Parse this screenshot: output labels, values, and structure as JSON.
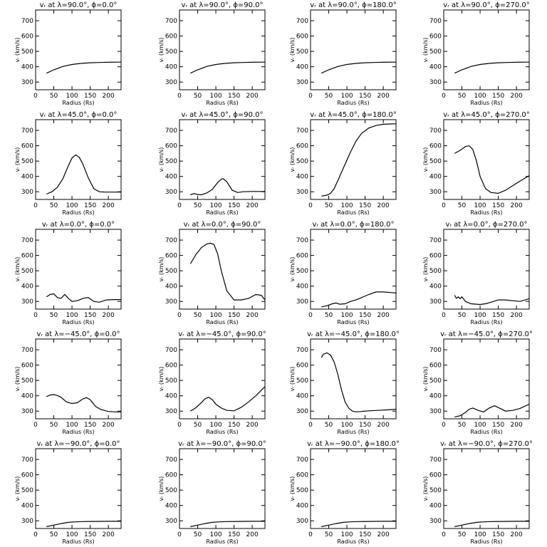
{
  "figure": {
    "xlabel": "Radius (Rs)",
    "ylabel": "vᵣ (km/s)"
  },
  "chart_data": [
    {
      "type": "line",
      "title": "vᵣ at λ=90.0°, ϕ=0.0°",
      "xlim": [
        0,
        235
      ],
      "ylim": [
        250,
        770
      ],
      "xticks": [
        0,
        50,
        100,
        150,
        200
      ],
      "yticks": [
        300,
        400,
        500,
        600,
        700
      ],
      "x": [
        30,
        50,
        75,
        100,
        125,
        150,
        175,
        200,
        235
      ],
      "y": [
        358,
        380,
        402,
        415,
        422,
        426,
        428,
        429,
        430
      ]
    },
    {
      "type": "line",
      "title": "vᵣ at λ=90.0°, ϕ=90.0°",
      "xlim": [
        0,
        235
      ],
      "ylim": [
        250,
        770
      ],
      "xticks": [
        0,
        50,
        100,
        150,
        200
      ],
      "yticks": [
        300,
        400,
        500,
        600,
        700
      ],
      "x": [
        30,
        50,
        75,
        100,
        125,
        150,
        175,
        200,
        235
      ],
      "y": [
        358,
        380,
        402,
        415,
        422,
        426,
        428,
        429,
        430
      ]
    },
    {
      "type": "line",
      "title": "vᵣ at λ=90.0°, ϕ=180.0°",
      "xlim": [
        0,
        235
      ],
      "ylim": [
        250,
        770
      ],
      "xticks": [
        0,
        50,
        100,
        150,
        200
      ],
      "yticks": [
        300,
        400,
        500,
        600,
        700
      ],
      "x": [
        30,
        50,
        75,
        100,
        125,
        150,
        175,
        200,
        235
      ],
      "y": [
        358,
        380,
        402,
        415,
        422,
        426,
        428,
        429,
        430
      ]
    },
    {
      "type": "line",
      "title": "vᵣ at λ=90.0°, ϕ=270.0°",
      "xlim": [
        0,
        235
      ],
      "ylim": [
        250,
        770
      ],
      "xticks": [
        0,
        50,
        100,
        150,
        200
      ],
      "yticks": [
        300,
        400,
        500,
        600,
        700
      ],
      "x": [
        30,
        50,
        75,
        100,
        125,
        150,
        175,
        200,
        235
      ],
      "y": [
        358,
        380,
        402,
        415,
        422,
        426,
        428,
        429,
        430
      ]
    },
    {
      "type": "line",
      "title": "vᵣ at λ=45.0°, ϕ=0.0°",
      "xlim": [
        0,
        235
      ],
      "ylim": [
        250,
        770
      ],
      "xticks": [
        0,
        50,
        100,
        150,
        200
      ],
      "yticks": [
        300,
        400,
        500,
        600,
        700
      ],
      "x": [
        30,
        45,
        60,
        75,
        90,
        100,
        110,
        120,
        130,
        145,
        160,
        175,
        190,
        210,
        235
      ],
      "y": [
        285,
        300,
        330,
        385,
        470,
        520,
        540,
        525,
        480,
        390,
        320,
        300,
        298,
        298,
        298
      ]
    },
    {
      "type": "line",
      "title": "vᵣ at λ=45.0°, ϕ=90.0°",
      "xlim": [
        0,
        235
      ],
      "ylim": [
        250,
        770
      ],
      "xticks": [
        0,
        50,
        100,
        150,
        200
      ],
      "yticks": [
        300,
        400,
        500,
        600,
        700
      ],
      "x": [
        30,
        40,
        50,
        60,
        75,
        90,
        105,
        115,
        120,
        130,
        145,
        160,
        175,
        200,
        235
      ],
      "y": [
        280,
        288,
        282,
        280,
        292,
        315,
        360,
        382,
        385,
        365,
        310,
        295,
        300,
        302,
        302
      ]
    },
    {
      "type": "line",
      "title": "vᵣ at λ=45.0°, ϕ=180.0°",
      "xlim": [
        0,
        235
      ],
      "ylim": [
        250,
        770
      ],
      "xticks": [
        0,
        50,
        100,
        150,
        200
      ],
      "yticks": [
        300,
        400,
        500,
        600,
        700
      ],
      "x": [
        30,
        45,
        55,
        65,
        80,
        95,
        110,
        125,
        140,
        160,
        180,
        200,
        220,
        235
      ],
      "y": [
        272,
        278,
        290,
        320,
        400,
        480,
        560,
        630,
        680,
        715,
        732,
        740,
        742,
        743
      ]
    },
    {
      "type": "line",
      "title": "vᵣ at λ=45.0°, ϕ=270.0°",
      "xlim": [
        0,
        235
      ],
      "ylim": [
        250,
        770
      ],
      "xticks": [
        0,
        50,
        100,
        150,
        200
      ],
      "yticks": [
        300,
        400,
        500,
        600,
        700
      ],
      "x": [
        30,
        45,
        60,
        70,
        80,
        90,
        100,
        115,
        130,
        150,
        170,
        190,
        210,
        235
      ],
      "y": [
        550,
        570,
        595,
        600,
        575,
        500,
        400,
        320,
        295,
        290,
        310,
        340,
        370,
        405
      ]
    },
    {
      "type": "line",
      "title": "vᵣ at λ=0.0°, ϕ=0.0°",
      "xlim": [
        0,
        235
      ],
      "ylim": [
        250,
        770
      ],
      "xticks": [
        0,
        50,
        100,
        150,
        200
      ],
      "yticks": [
        300,
        400,
        500,
        600,
        700
      ],
      "x": [
        30,
        40,
        50,
        60,
        70,
        80,
        90,
        100,
        115,
        130,
        145,
        160,
        175,
        195,
        215,
        235
      ],
      "y": [
        330,
        345,
        350,
        325,
        320,
        345,
        320,
        300,
        305,
        320,
        325,
        300,
        295,
        310,
        312,
        312
      ]
    },
    {
      "type": "line",
      "title": "vᵣ at λ=0.0°, ϕ=90.0°",
      "xlim": [
        0,
        235
      ],
      "ylim": [
        250,
        770
      ],
      "xticks": [
        0,
        50,
        100,
        150,
        200
      ],
      "yticks": [
        300,
        400,
        500,
        600,
        700
      ],
      "x": [
        30,
        45,
        60,
        75,
        85,
        95,
        105,
        115,
        130,
        150,
        170,
        190,
        210,
        225,
        235
      ],
      "y": [
        545,
        605,
        650,
        675,
        680,
        670,
        610,
        500,
        370,
        310,
        310,
        320,
        345,
        340,
        310
      ]
    },
    {
      "type": "line",
      "title": "vᵣ at λ=0.0°, ϕ=180.0°",
      "xlim": [
        0,
        235
      ],
      "ylim": [
        250,
        770
      ],
      "xticks": [
        0,
        50,
        100,
        150,
        200
      ],
      "yticks": [
        300,
        400,
        500,
        600,
        700
      ],
      "x": [
        30,
        45,
        60,
        70,
        80,
        95,
        110,
        125,
        140,
        160,
        180,
        200,
        220,
        235
      ],
      "y": [
        265,
        272,
        285,
        290,
        282,
        285,
        300,
        310,
        325,
        345,
        362,
        362,
        358,
        355
      ]
    },
    {
      "type": "line",
      "title": "vᵣ at λ=0.0°, ϕ=270.0°",
      "xlim": [
        0,
        235
      ],
      "ylim": [
        250,
        770
      ],
      "xticks": [
        0,
        50,
        100,
        150,
        200
      ],
      "yticks": [
        300,
        400,
        500,
        600,
        700
      ],
      "x": [
        30,
        35,
        40,
        45,
        50,
        55,
        60,
        75,
        90,
        100,
        115,
        130,
        150,
        170,
        190,
        210,
        235
      ],
      "y": [
        340,
        320,
        330,
        318,
        330,
        315,
        300,
        285,
        282,
        280,
        285,
        295,
        310,
        310,
        305,
        300,
        318
      ]
    },
    {
      "type": "line",
      "title": "vᵣ at λ=−45.0°, ϕ=0.0°",
      "xlim": [
        0,
        235
      ],
      "ylim": [
        250,
        770
      ],
      "xticks": [
        0,
        50,
        100,
        150,
        200
      ],
      "yticks": [
        300,
        400,
        500,
        600,
        700
      ],
      "x": [
        30,
        40,
        50,
        60,
        70,
        85,
        100,
        115,
        130,
        140,
        150,
        165,
        180,
        200,
        220,
        235
      ],
      "y": [
        395,
        405,
        408,
        402,
        390,
        360,
        350,
        355,
        380,
        388,
        375,
        330,
        310,
        298,
        295,
        295
      ]
    },
    {
      "type": "line",
      "title": "vᵣ at λ=−45.0°, ϕ=90.0°",
      "xlim": [
        0,
        235
      ],
      "ylim": [
        250,
        770
      ],
      "xticks": [
        0,
        50,
        100,
        150,
        200
      ],
      "yticks": [
        300,
        400,
        500,
        600,
        700
      ],
      "x": [
        30,
        45,
        60,
        70,
        80,
        90,
        100,
        115,
        130,
        150,
        170,
        190,
        210,
        235
      ],
      "y": [
        300,
        322,
        355,
        380,
        390,
        375,
        345,
        320,
        305,
        302,
        325,
        360,
        400,
        460
      ]
    },
    {
      "type": "line",
      "title": "vᵣ at λ=−45.0°, ϕ=180.0°",
      "xlim": [
        0,
        235
      ],
      "ylim": [
        250,
        770
      ],
      "xticks": [
        0,
        50,
        100,
        150,
        200
      ],
      "yticks": [
        300,
        400,
        500,
        600,
        700
      ],
      "x": [
        30,
        35,
        45,
        55,
        65,
        75,
        85,
        95,
        105,
        115,
        125,
        140,
        160,
        185,
        210,
        235
      ],
      "y": [
        650,
        670,
        680,
        665,
        620,
        540,
        440,
        360,
        320,
        300,
        295,
        298,
        302,
        305,
        308,
        312
      ]
    },
    {
      "type": "line",
      "title": "vᵣ at λ=−45.0°, ϕ=270.0°",
      "xlim": [
        0,
        235
      ],
      "ylim": [
        250,
        770
      ],
      "xticks": [
        0,
        50,
        100,
        150,
        200
      ],
      "yticks": [
        300,
        400,
        500,
        600,
        700
      ],
      "x": [
        30,
        45,
        60,
        70,
        80,
        95,
        110,
        125,
        140,
        155,
        170,
        190,
        210,
        235
      ],
      "y": [
        262,
        270,
        292,
        312,
        320,
        305,
        295,
        320,
        335,
        318,
        300,
        305,
        318,
        345
      ]
    },
    {
      "type": "line",
      "title": "vᵣ at λ=−90.0°, ϕ=0.0°",
      "xlim": [
        0,
        235
      ],
      "ylim": [
        250,
        770
      ],
      "xticks": [
        0,
        50,
        100,
        150,
        200
      ],
      "yticks": [
        300,
        400,
        500,
        600,
        700
      ],
      "x": [
        30,
        50,
        70,
        90,
        110,
        130,
        160,
        200,
        235
      ],
      "y": [
        262,
        272,
        282,
        290,
        293,
        295,
        296,
        297,
        297
      ]
    },
    {
      "type": "line",
      "title": "vᵣ at λ=−90.0°, ϕ=90.0°",
      "xlim": [
        0,
        235
      ],
      "ylim": [
        250,
        770
      ],
      "xticks": [
        0,
        50,
        100,
        150,
        200
      ],
      "yticks": [
        300,
        400,
        500,
        600,
        700
      ],
      "x": [
        30,
        50,
        70,
        90,
        110,
        130,
        160,
        200,
        235
      ],
      "y": [
        262,
        272,
        282,
        290,
        293,
        295,
        296,
        297,
        297
      ]
    },
    {
      "type": "line",
      "title": "vᵣ at λ=−90.0°, ϕ=180.0°",
      "xlim": [
        0,
        235
      ],
      "ylim": [
        250,
        770
      ],
      "xticks": [
        0,
        50,
        100,
        150,
        200
      ],
      "yticks": [
        300,
        400,
        500,
        600,
        700
      ],
      "x": [
        30,
        50,
        70,
        90,
        110,
        130,
        160,
        200,
        235
      ],
      "y": [
        262,
        272,
        282,
        290,
        293,
        295,
        296,
        297,
        297
      ]
    },
    {
      "type": "line",
      "title": "vᵣ at λ=−90.0°, ϕ=270.0°",
      "xlim": [
        0,
        235
      ],
      "ylim": [
        250,
        770
      ],
      "xticks": [
        0,
        50,
        100,
        150,
        200
      ],
      "yticks": [
        300,
        400,
        500,
        600,
        700
      ],
      "x": [
        30,
        50,
        70,
        90,
        110,
        130,
        160,
        200,
        235
      ],
      "y": [
        262,
        272,
        282,
        290,
        293,
        295,
        296,
        297,
        297
      ]
    }
  ]
}
